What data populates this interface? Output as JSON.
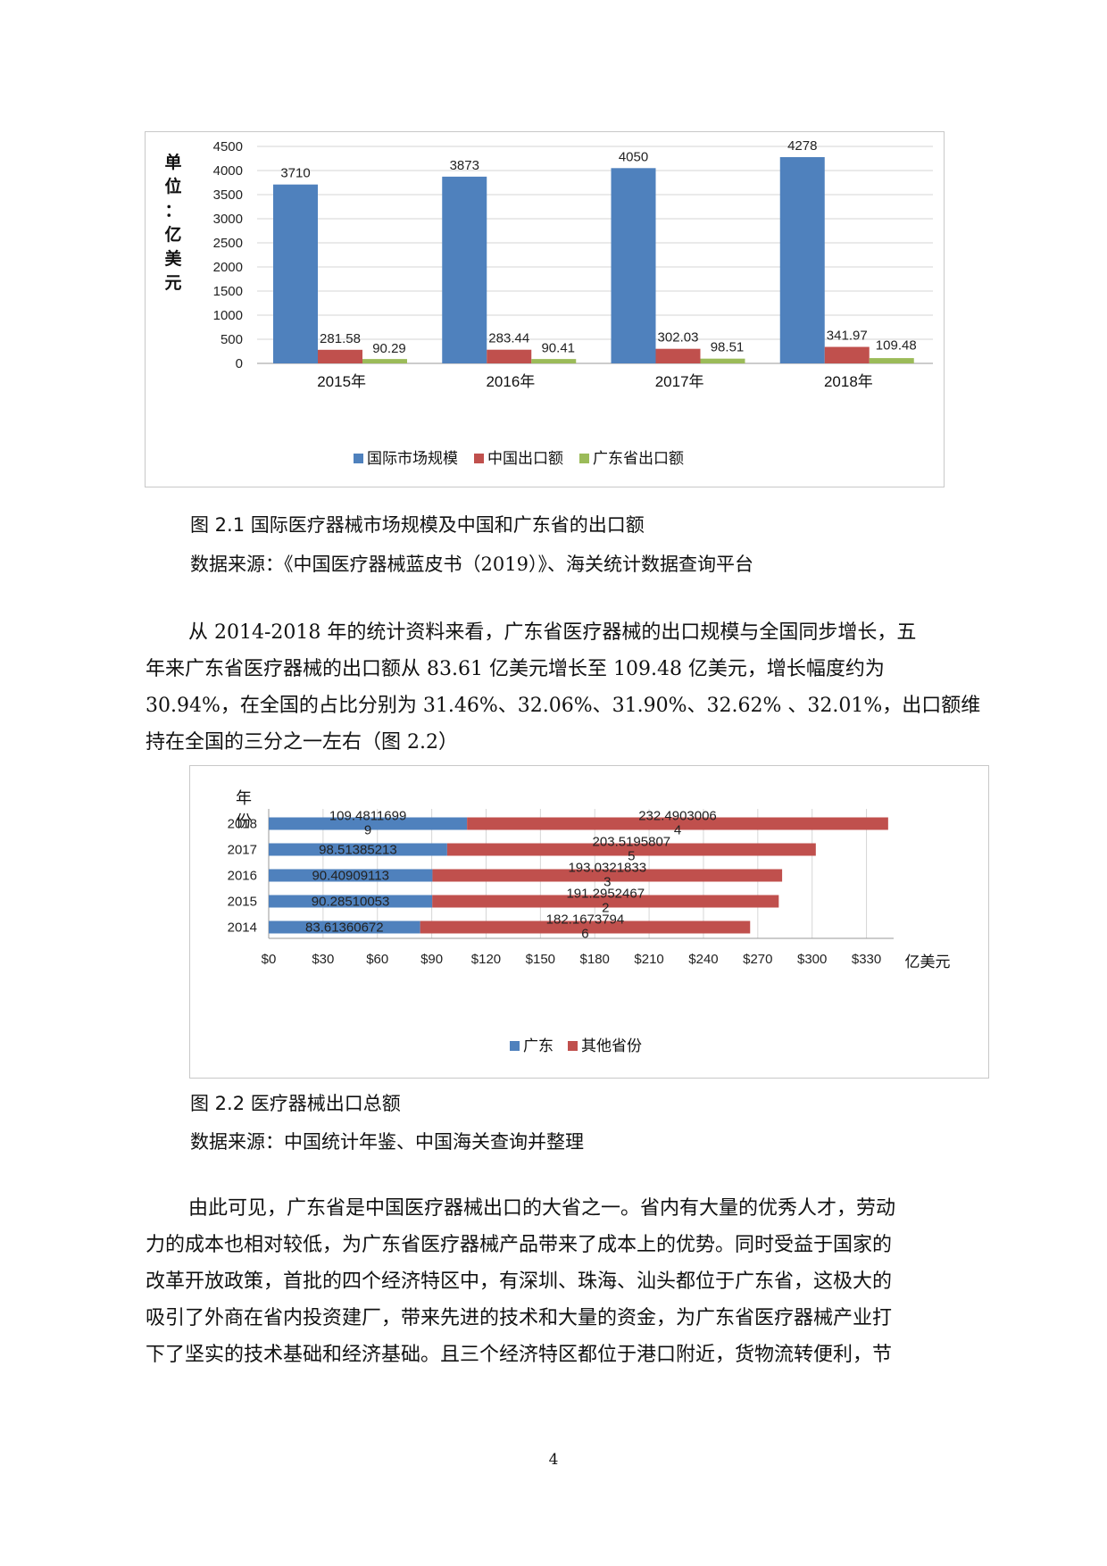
{
  "figure1": {
    "unit_label": "单位：亿美元",
    "caption": "图 2.1 国际医疗器械市场规模及中国和广东省的出口额",
    "source": "数据来源：《中国医疗器械蓝皮书（2019）》、海关统计数据查询平台",
    "chart_data": {
      "type": "bar",
      "categories": [
        "2015年",
        "2016年",
        "2017年",
        "2018年"
      ],
      "series": [
        {
          "name": "国际市场规模",
          "values": [
            3710,
            3873,
            4050,
            4278
          ],
          "labels": [
            "3710",
            "3873",
            "4050",
            "4278"
          ],
          "color": "#4f81bd"
        },
        {
          "name": "中国出口额",
          "values": [
            281.58,
            283.44,
            302.03,
            341.97
          ],
          "labels": [
            "281.58",
            "283.44",
            "302.03",
            "341.97"
          ],
          "color": "#c0504d"
        },
        {
          "name": "广东省出口额",
          "values": [
            90.29,
            90.41,
            98.51,
            109.48
          ],
          "labels": [
            "90.29",
            "90.41",
            "98.51",
            "109.48"
          ],
          "color": "#9bbb59"
        }
      ],
      "yticks": [
        "4500",
        "4000",
        "3500",
        "3000",
        "2500",
        "2000",
        "1500",
        "1000",
        "500",
        "0"
      ],
      "ylim": [
        0,
        4500
      ],
      "grid": true,
      "legend_position": "bottom"
    }
  },
  "figure2": {
    "caption": "图 2.2 医疗器械出口总额",
    "source": "数据来源：中国统计年鉴、中国海关查询并整理",
    "chart_data": {
      "type": "bar",
      "orientation": "horizontal",
      "stacked": true,
      "ylabel": "年份",
      "xunit": "亿美元",
      "categories": [
        "2018",
        "2017",
        "2016",
        "2015",
        "2014"
      ],
      "series": [
        {
          "name": "广东",
          "values": [
            109.4811699,
            98.51385213,
            90.40909113,
            90.28510053,
            83.61360672
          ],
          "labels": [
            [
              "109.4811699",
              "9"
            ],
            [
              "98.51385213"
            ],
            [
              "90.40909113"
            ],
            [
              "90.28510053"
            ],
            [
              "83.61360672"
            ]
          ],
          "color": "#4f81bd"
        },
        {
          "name": "其他省份",
          "values": [
            232.4903006,
            203.5195807,
            193.0321833,
            191.2952467,
            182.1673794
          ],
          "labels": [
            [
              "232.4903006",
              "4"
            ],
            [
              "203.5195807",
              "5"
            ],
            [
              "193.0321833",
              "3"
            ],
            [
              "191.2952467",
              "2"
            ],
            [
              "182.1673794",
              "6"
            ]
          ],
          "color": "#c0504d"
        }
      ],
      "xticks": [
        "$0",
        "$30",
        "$60",
        "$90",
        "$120",
        "$150",
        "$180",
        "$210",
        "$240",
        "$270",
        "$300",
        "$330"
      ],
      "xlim": [
        0,
        345
      ],
      "grid": true,
      "legend_position": "bottom"
    }
  },
  "paragraph1": [
    "从 2014-2018 年的统计资料来看，广东省医疗器械的出口规模与全国同步增长，五",
    "年来广东省医疗器械的出口额从 83.61 亿美元增长至 109.48 亿美元，增长幅度约为",
    "30.94%，在全国的占比分别为 31.46%、32.06%、31.90%、32.62% 、32.01%，出口额维",
    "持在全国的三分之一左右（图  2.2）"
  ],
  "paragraph2": [
    "由此可见，广东省是中国医疗器械出口的大省之一。省内有大量的优秀人才，劳动",
    "力的成本也相对较低，为广东省医疗器械产品带来了成本上的优势。同时受益于国家的",
    "改革开放政策，首批的四个经济特区中，有深圳、珠海、汕头都位于广东省，这极大的",
    "吸引了外商在省内投资建厂，带来先进的技术和大量的资金，为广东省医疗器械产业打",
    "下了坚实的技术基础和经济基础。且三个经济特区都位于港口附近，货物流转便利，节"
  ],
  "page_number": "4"
}
